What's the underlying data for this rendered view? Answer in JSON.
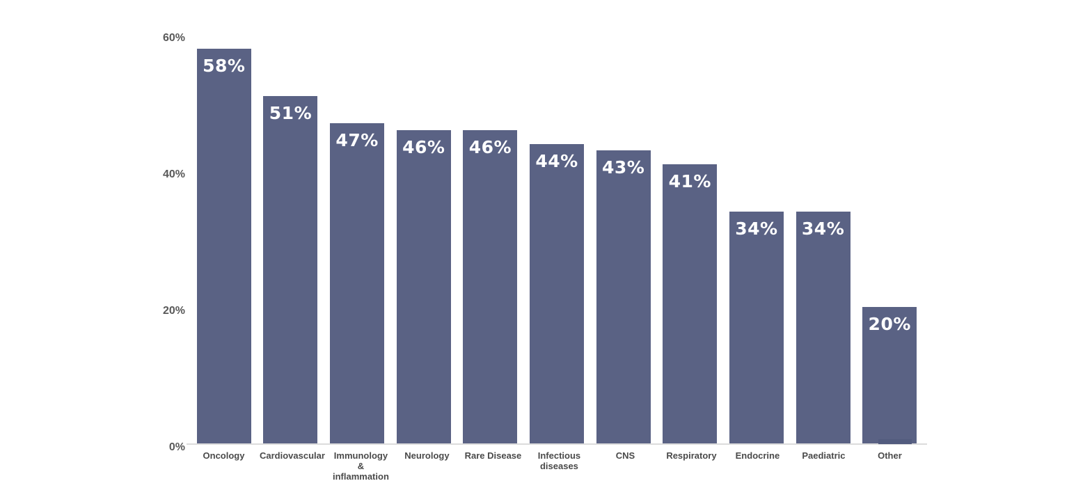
{
  "chart_data": {
    "type": "bar",
    "title": "",
    "xlabel": "",
    "ylabel": "",
    "categories": [
      "Oncology",
      "Cardiovascular",
      "Immunology & inflammation",
      "Neurology",
      "Rare Disease",
      "Infectious diseases",
      "CNS",
      "Respiratory",
      "Endocrine",
      "Paediatric",
      "Other"
    ],
    "values": [
      58,
      51,
      47,
      46,
      46,
      44,
      43,
      41,
      34,
      34,
      20
    ],
    "data_labels": [
      "58%",
      "51%",
      "47%",
      "46%",
      "46%",
      "44%",
      "43%",
      "41%",
      "34%",
      "34%",
      "20%"
    ],
    "y_ticks": [
      {
        "value": 0,
        "label": "0%"
      },
      {
        "value": 20,
        "label": "20%"
      },
      {
        "value": 40,
        "label": "40%"
      },
      {
        "value": 60,
        "label": "60%"
      }
    ],
    "ylim": [
      0,
      60
    ],
    "grid": "off",
    "legend": "none",
    "colors": {
      "bar": "#5a6284",
      "bar_label": "#ffffff",
      "y_tick_text": "#595959",
      "x_label_text": "#4a4a4a",
      "baseline": "#dcdcdc"
    }
  }
}
